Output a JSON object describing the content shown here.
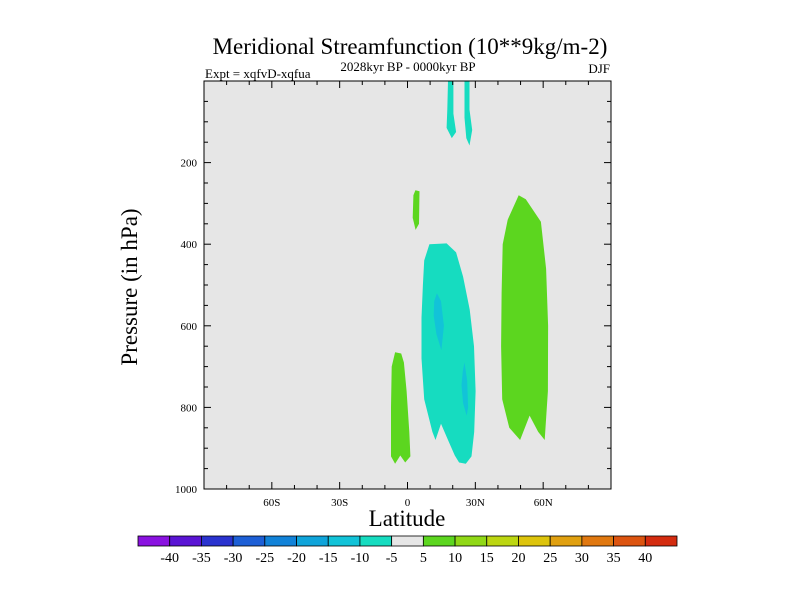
{
  "chart_data": {
    "type": "contour",
    "title": "Meridional Streamfunction (10**9kg/m-2)",
    "subtitle_left": "Expt = xqfvD-xqfua",
    "subtitle_center": "2028kyr BP - 0000kyr BP",
    "subtitle_right": "DJF",
    "xlabel": "Latitude",
    "ylabel": "Pressure (in hPa)",
    "x_range": [
      -90,
      90
    ],
    "y_range": [
      0,
      1000
    ],
    "y_reversed": true,
    "x_ticks": [
      {
        "value": -60,
        "label": "60S"
      },
      {
        "value": -30,
        "label": "30S"
      },
      {
        "value": 0,
        "label": "0"
      },
      {
        "value": 30,
        "label": "30N"
      },
      {
        "value": 60,
        "label": "60N"
      }
    ],
    "y_ticks": [
      {
        "value": 200,
        "label": "200"
      },
      {
        "value": 400,
        "label": "400"
      },
      {
        "value": 600,
        "label": "600"
      },
      {
        "value": 800,
        "label": "800"
      },
      {
        "value": 1000,
        "label": "1000"
      }
    ],
    "background_color": "#e6e6e6",
    "colorbar": {
      "labels": [
        "-40",
        "-35",
        "-30",
        "-25",
        "-20",
        "-15",
        "-10",
        "-5",
        "5",
        "10",
        "15",
        "20",
        "25",
        "30",
        "35",
        "40"
      ],
      "colors": [
        "#8a12e0",
        "#5a14d4",
        "#2a33cf",
        "#1d5fd6",
        "#1182d8",
        "#0fa4da",
        "#12c3d8",
        "#16dcc0",
        "#e6e6e6",
        "#5cd61f",
        "#90d816",
        "#bcd611",
        "#ddc40c",
        "#e0a010",
        "#e07810",
        "#dc5410",
        "#d42c10"
      ]
    },
    "regions": [
      {
        "name": "upper-jet-left",
        "level": -5,
        "color": "#16dcc0",
        "points": [
          [
            17.9,
            0
          ],
          [
            20.3,
            0
          ],
          [
            20.3,
            80
          ],
          [
            21.5,
            125
          ],
          [
            19.6,
            140
          ],
          [
            17.3,
            115
          ],
          [
            17.6,
            70
          ]
        ]
      },
      {
        "name": "upper-jet-right",
        "level": -5,
        "color": "#16dcc0",
        "points": [
          [
            25.2,
            0
          ],
          [
            27.4,
            0
          ],
          [
            27.4,
            70
          ],
          [
            28.6,
            120
          ],
          [
            27.4,
            158
          ],
          [
            26.0,
            140
          ],
          [
            25.2,
            90
          ]
        ]
      },
      {
        "name": "upper-positive-cell",
        "level": 5,
        "color": "#5cd61f",
        "points": [
          [
            3.5,
            268
          ],
          [
            5.3,
            270
          ],
          [
            5.1,
            350
          ],
          [
            3.6,
            365
          ],
          [
            2.3,
            335
          ],
          [
            2.6,
            280
          ]
        ]
      },
      {
        "name": "tropical-negative-cell",
        "level": -5,
        "color": "#16dcc0",
        "points": [
          [
            9.7,
            400
          ],
          [
            17.3,
            398
          ],
          [
            21.5,
            420
          ],
          [
            24.6,
            480
          ],
          [
            27.5,
            560
          ],
          [
            29.4,
            650
          ],
          [
            30.1,
            760
          ],
          [
            29.5,
            860
          ],
          [
            28.3,
            920
          ],
          [
            25.8,
            938
          ],
          [
            22.8,
            935
          ],
          [
            20.9,
            918
          ],
          [
            17.9,
            880
          ],
          [
            14.8,
            840
          ],
          [
            12.4,
            880
          ],
          [
            11.0,
            860
          ],
          [
            7.4,
            780
          ],
          [
            6.2,
            680
          ],
          [
            6.2,
            580
          ],
          [
            6.8,
            500
          ],
          [
            7.4,
            440
          ]
        ]
      },
      {
        "name": "tropical-negative-core-upper",
        "level": -10,
        "color": "#12c3d8",
        "points": [
          [
            13.0,
            520
          ],
          [
            14.8,
            540
          ],
          [
            16.1,
            600
          ],
          [
            15.0,
            660
          ],
          [
            12.8,
            620
          ],
          [
            11.6,
            575
          ],
          [
            11.8,
            540
          ]
        ]
      },
      {
        "name": "tropical-negative-core-lower",
        "level": -10,
        "color": "#12c3d8",
        "points": [
          [
            25.2,
            690
          ],
          [
            26.4,
            735
          ],
          [
            26.8,
            800
          ],
          [
            26.2,
            820
          ],
          [
            24.6,
            790
          ],
          [
            23.9,
            745
          ],
          [
            24.5,
            710
          ]
        ]
      },
      {
        "name": "equatorial-positive-cell",
        "level": 5,
        "color": "#5cd61f",
        "points": [
          [
            -5.5,
            665
          ],
          [
            -2.8,
            668
          ],
          [
            -1.6,
            690
          ],
          [
            -0.4,
            760
          ],
          [
            0.8,
            860
          ],
          [
            1.3,
            920
          ],
          [
            -1.0,
            935
          ],
          [
            -3.2,
            918
          ],
          [
            -5.5,
            938
          ],
          [
            -7.3,
            920
          ],
          [
            -7.3,
            800
          ],
          [
            -7.0,
            700
          ]
        ]
      },
      {
        "name": "subtropical-positive-cell",
        "level": 5,
        "color": "#5cd61f",
        "points": [
          [
            49.2,
            280
          ],
          [
            52.3,
            290
          ],
          [
            59.0,
            345
          ],
          [
            61.3,
            460
          ],
          [
            62.2,
            600
          ],
          [
            62.1,
            760
          ],
          [
            60.7,
            880
          ],
          [
            57.8,
            860
          ],
          [
            54.0,
            820
          ],
          [
            49.8,
            880
          ],
          [
            45.0,
            850
          ],
          [
            41.9,
            780
          ],
          [
            41.4,
            650
          ],
          [
            41.6,
            520
          ],
          [
            42.1,
            400
          ],
          [
            44.3,
            340
          ]
        ]
      }
    ]
  }
}
